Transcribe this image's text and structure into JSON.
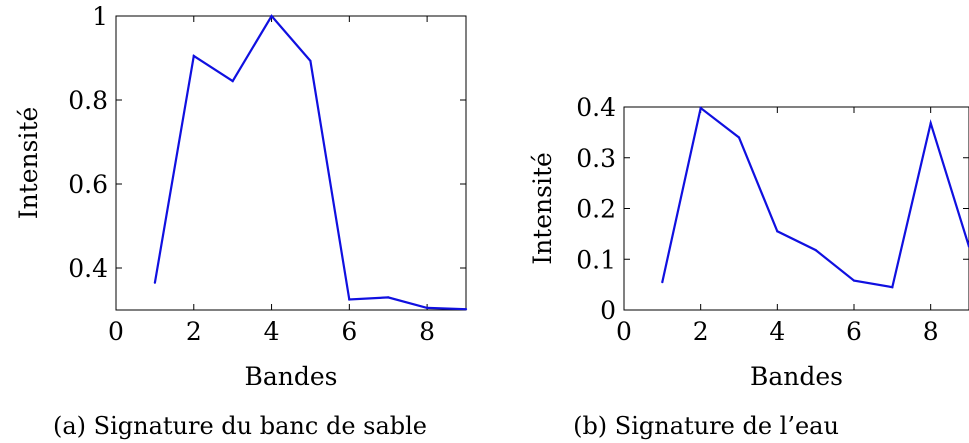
{
  "chart_data": [
    {
      "type": "line",
      "caption": "(a) Signature du banc de sable",
      "xlabel": "Bandes",
      "ylabel": "Intensité",
      "xlim": [
        0,
        9
      ],
      "ylim": [
        0.3,
        1.0
      ],
      "xticks": [
        0,
        2,
        4,
        6,
        8
      ],
      "yticks": [
        0.4,
        0.6,
        0.8,
        1
      ],
      "xtick_labels": [
        "0",
        "2",
        "4",
        "6",
        "8"
      ],
      "ytick_labels": [
        "0.4",
        "0.6",
        "0.8",
        "1"
      ],
      "grid": false,
      "series_color": "#1010e0",
      "x": [
        1,
        2,
        3,
        4,
        5,
        6,
        7,
        8,
        9
      ],
      "y": [
        0.365,
        0.905,
        0.845,
        1.0,
        0.893,
        0.325,
        0.33,
        0.305,
        0.302
      ]
    },
    {
      "type": "line",
      "caption": "(b) Signature de l’eau",
      "xlabel": "Bandes",
      "ylabel": "Intensité",
      "xlim": [
        0,
        9
      ],
      "ylim": [
        0,
        0.4
      ],
      "xticks": [
        0,
        2,
        4,
        6,
        8
      ],
      "yticks": [
        0,
        0.1,
        0.2,
        0.3,
        0.4
      ],
      "xtick_labels": [
        "0",
        "2",
        "4",
        "6",
        "8"
      ],
      "ytick_labels": [
        "0",
        "0.1",
        "0.2",
        "0.3",
        "0.4"
      ],
      "grid": false,
      "series_color": "#1010e0",
      "x": [
        1,
        2,
        3,
        4,
        5,
        6,
        7,
        8,
        9
      ],
      "y": [
        0.055,
        0.398,
        0.34,
        0.155,
        0.118,
        0.058,
        0.045,
        0.368,
        0.125
      ]
    }
  ]
}
